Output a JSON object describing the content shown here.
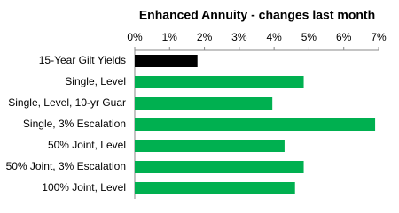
{
  "chart_data": {
    "type": "hbar",
    "title": "Enhanced Annuity - changes last month",
    "categories": [
      "15-Year Gilt Yields",
      "Single, Level",
      "Single, Level, 10-yr Guar",
      "Single, 3% Escalation",
      "50% Joint, Level",
      "50% Joint, 3% Escalation",
      "100% Joint, Level"
    ],
    "values": [
      1.8,
      4.85,
      3.95,
      6.9,
      4.3,
      4.85,
      4.6
    ],
    "colors": [
      "#000000",
      "#00b050",
      "#00b050",
      "#00b050",
      "#00b050",
      "#00b050",
      "#00b050"
    ],
    "xlim": [
      0,
      7
    ],
    "xticks": [
      {
        "value": 0,
        "label": "0%"
      },
      {
        "value": 1,
        "label": "1%"
      },
      {
        "value": 2,
        "label": "2%"
      },
      {
        "value": 3,
        "label": "3%"
      },
      {
        "value": 4,
        "label": "4%"
      },
      {
        "value": 5,
        "label": "5%"
      },
      {
        "value": 6,
        "label": "6%"
      },
      {
        "value": 7,
        "label": "7%"
      }
    ]
  }
}
